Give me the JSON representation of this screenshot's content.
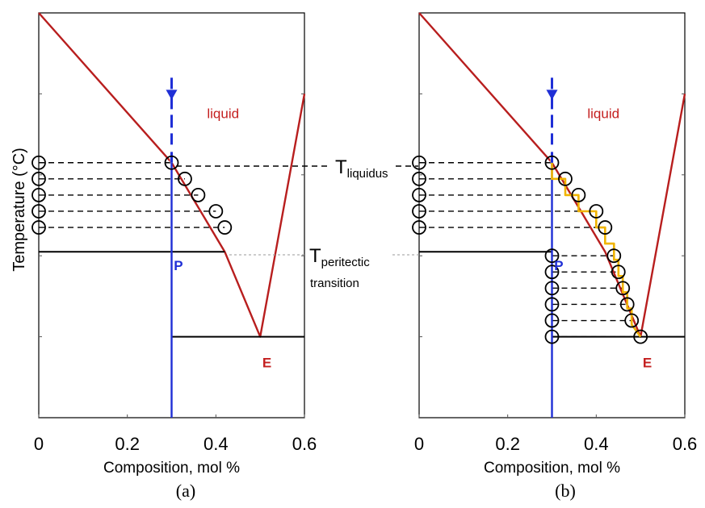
{
  "colors": {
    "liquidus": "#b81e1e",
    "composition_line": "#1f2fd6",
    "path": "#f0b400",
    "frame": "#000000",
    "text_red": "#c41f1f",
    "text_blue": "#1f2fd6"
  },
  "shared_labels": {
    "ylabel": "Temperature (°C)",
    "t_liquidus_main": "T",
    "t_liquidus_sub": "liquidus",
    "t_peritectic_main": "T",
    "t_peritectic_sub": "peritectic",
    "t_peritectic_line2": "transition"
  },
  "chart_data": [
    {
      "type": "line",
      "caption": "(a)",
      "xlabel": "Composition, mol %",
      "ylabel": "Temperature (°C)",
      "xlim": [
        0,
        0.6
      ],
      "x_ticks": [
        "0",
        "0.2",
        "0.4",
        "0.6"
      ],
      "series": [
        {
          "role": "liquidus",
          "points": [
            [
              0,
              1.0
            ],
            [
              0.3,
              0.63
            ],
            [
              0.42,
              0.41
            ],
            [
              0.5,
              0.2
            ],
            [
              0.6,
              0.8
            ]
          ]
        },
        {
          "role": "peritectic-isotherm",
          "points": [
            [
              0,
              0.41
            ],
            [
              0.42,
              0.41
            ]
          ]
        },
        {
          "role": "eutectic-isotherm",
          "points": [
            [
              0.3,
              0.2
            ],
            [
              0.6,
              0.2
            ]
          ]
        },
        {
          "role": "composition-line",
          "points": [
            [
              0.3,
              0.82
            ],
            [
              0.3,
              0.0
            ]
          ]
        }
      ],
      "markers": {
        "left_circles": [
          [
            0,
            0.63
          ],
          [
            0,
            0.59
          ],
          [
            0,
            0.55
          ],
          [
            0,
            0.51
          ],
          [
            0,
            0.47
          ]
        ],
        "right_circles": [
          [
            0.3,
            0.63
          ],
          [
            0.33,
            0.59
          ],
          [
            0.36,
            0.55
          ],
          [
            0.4,
            0.51
          ],
          [
            0.42,
            0.47
          ]
        ]
      },
      "annotations": {
        "liquid": "liquid",
        "P": "P",
        "E": "E"
      }
    },
    {
      "type": "line",
      "caption": "(b)",
      "xlabel": "Composition, mol %",
      "xlim": [
        0,
        0.6
      ],
      "x_ticks": [
        "0",
        "0.2",
        "0.4",
        "0.6"
      ],
      "series": [
        {
          "role": "liquidus",
          "points": [
            [
              0,
              1.0
            ],
            [
              0.3,
              0.63
            ],
            [
              0.42,
              0.41
            ],
            [
              0.5,
              0.2
            ],
            [
              0.6,
              0.8
            ]
          ]
        },
        {
          "role": "peritectic-isotherm",
          "points": [
            [
              0,
              0.41
            ],
            [
              0.3,
              0.41
            ]
          ]
        },
        {
          "role": "eutectic-isotherm",
          "points": [
            [
              0.3,
              0.2
            ],
            [
              0.6,
              0.2
            ]
          ]
        },
        {
          "role": "composition-line",
          "points": [
            [
              0.3,
              0.82
            ],
            [
              0.3,
              0.0
            ]
          ]
        },
        {
          "role": "solidification-path",
          "points": [
            [
              0.3,
              0.63
            ],
            [
              0.3,
              0.59
            ],
            [
              0.33,
              0.59
            ],
            [
              0.33,
              0.55
            ],
            [
              0.36,
              0.55
            ],
            [
              0.36,
              0.51
            ],
            [
              0.4,
              0.51
            ],
            [
              0.4,
              0.47
            ],
            [
              0.42,
              0.47
            ],
            [
              0.42,
              0.43
            ],
            [
              0.44,
              0.43
            ],
            [
              0.44,
              0.39
            ],
            [
              0.45,
              0.39
            ],
            [
              0.45,
              0.35
            ],
            [
              0.46,
              0.35
            ],
            [
              0.46,
              0.31
            ],
            [
              0.47,
              0.31
            ],
            [
              0.47,
              0.27
            ],
            [
              0.48,
              0.27
            ],
            [
              0.48,
              0.23
            ],
            [
              0.5,
              0.2
            ]
          ]
        }
      ],
      "markers": {
        "left_circles": [
          [
            0,
            0.63
          ],
          [
            0,
            0.59
          ],
          [
            0,
            0.55
          ],
          [
            0,
            0.51
          ],
          [
            0,
            0.47
          ]
        ],
        "upper_right_circles": [
          [
            0.3,
            0.63
          ],
          [
            0.33,
            0.59
          ],
          [
            0.36,
            0.55
          ],
          [
            0.4,
            0.51
          ],
          [
            0.42,
            0.47
          ]
        ],
        "lower_left_circles": [
          [
            0.3,
            0.4
          ],
          [
            0.3,
            0.36
          ],
          [
            0.3,
            0.32
          ],
          [
            0.3,
            0.28
          ],
          [
            0.3,
            0.24
          ],
          [
            0.3,
            0.2
          ]
        ],
        "lower_right_circles": [
          [
            0.44,
            0.4
          ],
          [
            0.45,
            0.36
          ],
          [
            0.46,
            0.32
          ],
          [
            0.47,
            0.28
          ],
          [
            0.48,
            0.24
          ],
          [
            0.5,
            0.2
          ]
        ]
      },
      "annotations": {
        "liquid": "liquid",
        "P": "P",
        "E": "E"
      }
    }
  ]
}
